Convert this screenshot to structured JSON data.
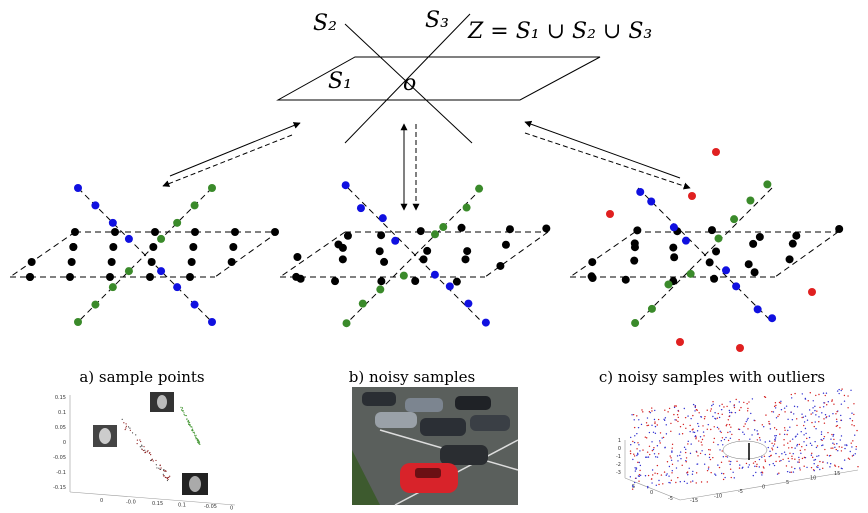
{
  "top": {
    "s2": "S₂",
    "s3": "S₃",
    "formula": "Z = S₁ ∪ S₂ ∪ S₃",
    "s1": "S₁",
    "origin": "o"
  },
  "captions": [
    "a) sample points",
    "b) noisy samples",
    "c) noisy samples with outliers"
  ],
  "plot_a": {
    "yticks": [
      "0.15",
      "0.1",
      "0.05",
      "0",
      "-0.05",
      "-0.1",
      "-0.15"
    ],
    "xticks": [
      "0",
      "-0.0",
      "0.15",
      "0.1",
      "-0.05",
      "0"
    ]
  },
  "plot_c": {
    "zticks": [
      "1",
      "0",
      "-1",
      "-2",
      "-3"
    ],
    "xticks": [
      "5",
      "0",
      "-5",
      "-15",
      "-10",
      "-5",
      "0",
      "5",
      "10",
      "15"
    ]
  }
}
